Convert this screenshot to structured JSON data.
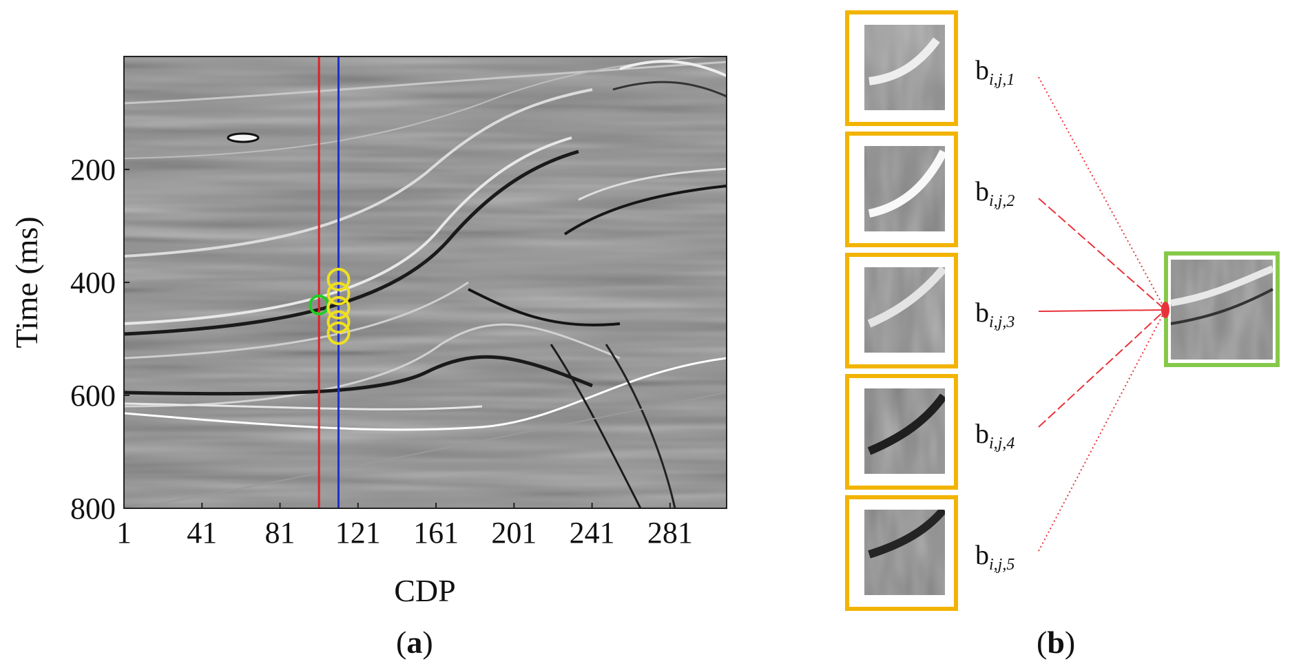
{
  "panel_a": {
    "label_open": "(",
    "label_letter": "a",
    "label_close": ")",
    "ylabel": "Time (ms)",
    "xlabel": "CDP",
    "y_ticks": [
      "200",
      "400",
      "600",
      "800"
    ],
    "x_ticks": [
      "1",
      "41",
      "81",
      "121",
      "161",
      "201",
      "241",
      "281"
    ],
    "y_range": [
      0,
      800
    ],
    "x_range": [
      1,
      310
    ],
    "red_line_cdp": 101,
    "blue_line_cdp": 111,
    "green_marker": {
      "cdp": 101,
      "time": 440
    },
    "yellow_markers": [
      {
        "cdp": 111,
        "time": 395
      },
      {
        "cdp": 111,
        "time": 420
      },
      {
        "cdp": 111,
        "time": 445
      },
      {
        "cdp": 111,
        "time": 470
      },
      {
        "cdp": 111,
        "time": 490
      }
    ],
    "colors": {
      "red_line": "#e0202a",
      "blue_line": "#1f2fd0",
      "green_marker": "#22cc22",
      "yellow_marker": "#f0e020"
    }
  },
  "panel_b": {
    "label_open": "(",
    "label_letter": "b",
    "label_close": ")",
    "blocks": [
      {
        "base": "b",
        "sub": "i,j,1"
      },
      {
        "base": "b",
        "sub": "i,j,2"
      },
      {
        "base": "b",
        "sub": "i,j,3"
      },
      {
        "base": "b",
        "sub": "i,j,4"
      },
      {
        "base": "b",
        "sub": "i,j,5"
      }
    ],
    "colors": {
      "block_border": "#f2b400",
      "output_border": "#86c94a",
      "connector": "#e8323a"
    }
  }
}
